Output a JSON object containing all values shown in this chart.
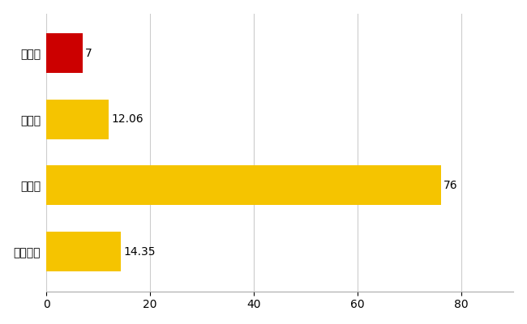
{
  "categories": [
    "土庄町",
    "県平均",
    "県最大",
    "全国平均"
  ],
  "values": [
    7,
    12.06,
    76,
    14.35
  ],
  "bar_colors": [
    "#cc0000",
    "#f5c400",
    "#f5c400",
    "#f5c400"
  ],
  "value_labels": [
    "7",
    "12.06",
    "76",
    "14.35"
  ],
  "xlim": [
    0,
    90
  ],
  "xticks": [
    0,
    20,
    40,
    60,
    80
  ],
  "background_color": "#ffffff",
  "grid_color": "#cccccc",
  "bar_height": 0.6,
  "label_fontsize": 10,
  "tick_fontsize": 10
}
